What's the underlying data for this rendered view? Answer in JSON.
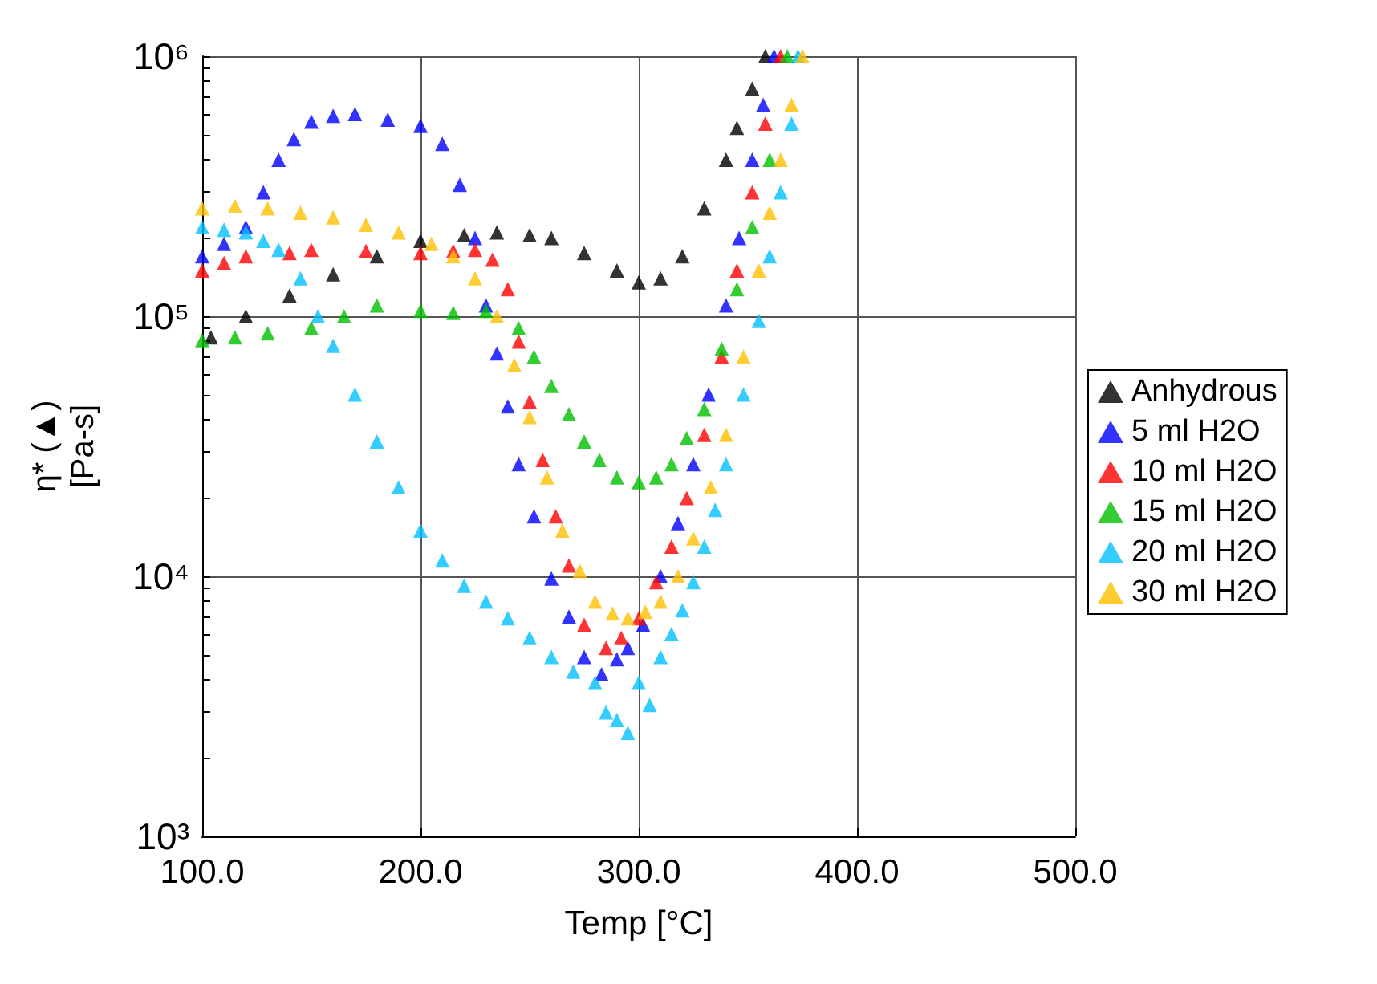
{
  "chart_data": {
    "type": "scatter",
    "xlabel": "Temp [°C]",
    "ylabel": "η* (▲)\n[Pa-s]",
    "log": "y",
    "grid": true,
    "legend": "right",
    "marker": "triangle",
    "xlim": [
      100,
      500
    ],
    "xticks": [
      {
        "value": 100,
        "label": "100.0"
      },
      {
        "value": 200,
        "label": "200.0"
      },
      {
        "value": 300,
        "label": "300.0"
      },
      {
        "value": 400,
        "label": "400.0"
      },
      {
        "value": 500,
        "label": "500.0"
      }
    ],
    "ylim": [
      1000,
      1000000
    ],
    "yticks": [
      {
        "value": 1000,
        "label": "10³"
      },
      {
        "value": 10000,
        "label": "10⁴"
      },
      {
        "value": 100000,
        "label": "10⁵"
      },
      {
        "value": 1000000,
        "label": "10⁶"
      }
    ],
    "series": [
      {
        "name": "Anhydrous",
        "color": "#000000",
        "x": [
          104,
          120,
          140,
          160,
          180,
          200,
          220,
          235,
          250,
          260,
          275,
          290,
          300,
          310,
          320,
          330,
          340,
          345,
          352,
          358
        ],
        "values": [
          83000,
          100000,
          120000,
          145000,
          170000,
          195000,
          205000,
          210000,
          205000,
          200000,
          175000,
          150000,
          135000,
          140000,
          170000,
          260000,
          400000,
          530000,
          750000,
          1000000
        ]
      },
      {
        "name": "5 ml H2O",
        "color": "#0000ff",
        "x": [
          100,
          110,
          120,
          128,
          135,
          142,
          150,
          160,
          170,
          185,
          200,
          210,
          218,
          225,
          230,
          235,
          240,
          245,
          252,
          260,
          268,
          275,
          283,
          290,
          295,
          302,
          310,
          318,
          325,
          332,
          340,
          346,
          352,
          357,
          362
        ],
        "values": [
          170000,
          190000,
          220000,
          300000,
          400000,
          480000,
          560000,
          590000,
          600000,
          570000,
          540000,
          460000,
          320000,
          200000,
          110000,
          72000,
          45000,
          27000,
          17000,
          9800,
          7000,
          4900,
          4200,
          4800,
          5300,
          6500,
          10000,
          16000,
          27000,
          50000,
          110000,
          200000,
          400000,
          650000,
          1000000
        ]
      },
      {
        "name": "10 ml H2O",
        "color": "#ff0000",
        "x": [
          100,
          110,
          120,
          140,
          150,
          175,
          200,
          215,
          225,
          233,
          240,
          245,
          250,
          256,
          262,
          268,
          275,
          285,
          292,
          300,
          308,
          315,
          322,
          330,
          338,
          345,
          352,
          358,
          365
        ],
        "values": [
          150000,
          160000,
          170000,
          175000,
          180000,
          178000,
          175000,
          178000,
          180000,
          165000,
          127000,
          80000,
          47000,
          28000,
          17000,
          11000,
          6500,
          5300,
          5800,
          6900,
          9500,
          13000,
          20000,
          35000,
          70000,
          150000,
          300000,
          550000,
          1000000
        ]
      },
      {
        "name": "15 ml H2O",
        "color": "#00c000",
        "x": [
          100,
          115,
          130,
          150,
          165,
          180,
          200,
          215,
          230,
          245,
          252,
          260,
          268,
          275,
          282,
          290,
          300,
          308,
          315,
          322,
          330,
          338,
          345,
          352,
          360,
          368
        ],
        "values": [
          81000,
          83000,
          86000,
          90000,
          100000,
          110000,
          105000,
          103000,
          105000,
          90000,
          70000,
          54000,
          42000,
          33000,
          28000,
          24000,
          23000,
          24000,
          27000,
          34000,
          44000,
          75000,
          127000,
          220000,
          400000,
          1000000
        ]
      },
      {
        "name": "20 ml H2O",
        "color": "#00c0ff",
        "x": [
          100,
          110,
          120,
          128,
          135,
          145,
          153,
          160,
          170,
          180,
          190,
          200,
          210,
          220,
          230,
          240,
          250,
          260,
          270,
          280,
          285,
          290,
          295,
          300,
          305,
          310,
          315,
          320,
          325,
          330,
          335,
          340,
          348,
          355,
          360,
          365,
          370,
          373
        ],
        "values": [
          220000,
          215000,
          210000,
          195000,
          180000,
          140000,
          100000,
          77000,
          50000,
          33000,
          22000,
          15000,
          11500,
          9200,
          8000,
          6900,
          5800,
          4900,
          4300,
          3900,
          3000,
          2800,
          2500,
          3900,
          3200,
          4900,
          6000,
          7400,
          9500,
          13000,
          18000,
          27000,
          50000,
          96000,
          170000,
          300000,
          550000,
          1000000
        ]
      },
      {
        "name": "30 ml H2O",
        "color": "#ffc000",
        "x": [
          100,
          115,
          130,
          145,
          160,
          175,
          190,
          205,
          215,
          225,
          235,
          243,
          250,
          258,
          265,
          273,
          280,
          288,
          295,
          303,
          310,
          318,
          325,
          333,
          340,
          348,
          355,
          360,
          365,
          370,
          375
        ],
        "values": [
          260000,
          265000,
          260000,
          250000,
          240000,
          225000,
          210000,
          190000,
          170000,
          140000,
          100000,
          65000,
          41000,
          24000,
          15000,
          10500,
          8000,
          7200,
          6900,
          7300,
          8000,
          10000,
          14000,
          22000,
          35000,
          70000,
          150000,
          250000,
          400000,
          650000,
          1000000
        ]
      }
    ]
  }
}
